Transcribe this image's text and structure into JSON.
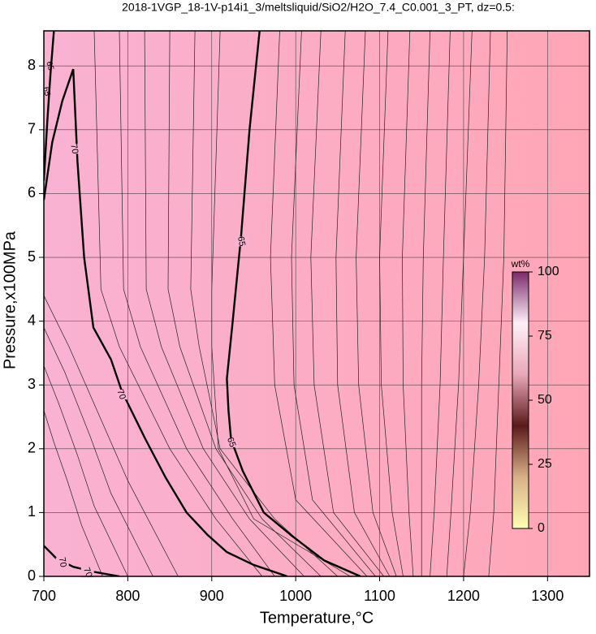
{
  "chart_data": {
    "type": "contour",
    "title": "2018-1VGP_18-1V-p14i1_3/meltsliquid/SiO2/H2O_7.4_C0.001_3_PT, dz=0.5:",
    "x_label": "Temperature,°C",
    "y_label": "Pressure,x100MPa",
    "xlim": [
      700,
      1350
    ],
    "ylim": [
      0,
      8.55
    ],
    "xticks": [
      700,
      800,
      900,
      1000,
      1100,
      1200,
      1300
    ],
    "yticks": [
      0,
      1,
      2,
      3,
      4,
      5,
      6,
      7,
      8
    ],
    "grid": true,
    "field_colors": [
      "#f9b2d2",
      "#ffa6b6"
    ],
    "contours": [
      {
        "level": 70,
        "label_x": [
          736,
          792
        ],
        "label_y": [
          6.7,
          2.85
        ],
        "x": [
          700,
          710,
          722,
          735,
          740,
          748,
          759,
          780,
          793,
          821,
          845,
          870,
          895,
          918,
          950,
          990
        ],
        "y": [
          5.9,
          6.8,
          7.45,
          7.95,
          6.5,
          5.0,
          3.9,
          3.4,
          2.9,
          2.15,
          1.55,
          1.0,
          0.65,
          0.38,
          0.18,
          0
        ]
      },
      {
        "level": 70,
        "label_x": [],
        "label_y": [],
        "x": [
          700,
          704,
          708,
          712
        ],
        "y": [
          6.2,
          7.1,
          7.9,
          8.55
        ]
      },
      {
        "level": 65,
        "label_x": [
          935,
          923
        ],
        "label_y": [
          5.25,
          2.1
        ],
        "x": [
          957,
          945,
          935,
          925,
          918,
          920,
          923,
          937,
          962,
          995,
          1034,
          1077
        ],
        "y": [
          8.55,
          7.0,
          5.35,
          4.0,
          3.1,
          2.6,
          2.15,
          1.65,
          1.0,
          0.64,
          0.25,
          0
        ]
      },
      {
        "level": 70,
        "label_x": [
          722,
          752
        ],
        "label_y": [
          0.22,
          0.06
        ],
        "x": [
          700,
          715,
          735,
          760,
          790
        ],
        "y": [
          0.48,
          0.28,
          0.15,
          0.07,
          0
        ]
      }
    ],
    "contour_labels_top": {
      "level": 65,
      "x": [
        707,
        703
      ],
      "y": [
        8.0,
        7.6
      ]
    },
    "thin_contours": [
      {
        "x": [
          981,
          970,
          975,
          1000,
          1085
        ],
        "y": [
          8.55,
          5.0,
          3.0,
          1.2,
          0
        ]
      },
      {
        "x": [
          1007,
          995,
          998,
          1020,
          1095
        ],
        "y": [
          8.55,
          5.0,
          3.0,
          1.2,
          0
        ]
      },
      {
        "x": [
          1030,
          1018,
          1022,
          1045,
          1105
        ],
        "y": [
          8.55,
          5.0,
          3.0,
          1.0,
          0
        ]
      },
      {
        "x": [
          1059,
          1048,
          1050,
          1070,
          1112
        ],
        "y": [
          8.55,
          5.0,
          3.0,
          1.0,
          0
        ]
      },
      {
        "x": [
          1083,
          1072,
          1075,
          1092,
          1120
        ],
        "y": [
          8.55,
          5.0,
          3.0,
          1.0,
          0
        ]
      },
      {
        "x": [
          1110,
          1100,
          1102,
          1115,
          1128
        ],
        "y": [
          8.55,
          5.0,
          3.0,
          1.0,
          0
        ]
      },
      {
        "x": [
          1136,
          1127,
          1128,
          1135,
          1140
        ],
        "y": [
          8.55,
          5.0,
          3.0,
          1.0,
          0
        ]
      },
      {
        "x": [
          1160,
          1152,
          1150,
          1150,
          1150
        ],
        "y": [
          8.55,
          5.0,
          3.0,
          1.0,
          0
        ]
      },
      {
        "x": [
          1184,
          1176,
          1172,
          1165,
          1160
        ],
        "y": [
          8.55,
          5.0,
          3.0,
          1.0,
          0
        ]
      },
      {
        "x": [
          1210,
          1200,
          1194,
          1185,
          1180
        ],
        "y": [
          8.55,
          5.0,
          3.0,
          1.0,
          0
        ]
      },
      {
        "x": [
          1232,
          1225,
          1218,
          1208,
          1200
        ],
        "y": [
          8.55,
          5.0,
          3.0,
          1.0,
          0
        ]
      },
      {
        "x": [
          1252,
          1248,
          1242,
          1236,
          1230
        ],
        "y": [
          8.55,
          5.0,
          3.0,
          1.0,
          0
        ]
      },
      {
        "x": [
          760,
          768,
          790,
          850,
          905,
          960
        ],
        "y": [
          8.55,
          4.5,
          3.6,
          2.0,
          0.9,
          0
        ]
      },
      {
        "x": [
          790,
          795,
          815,
          870,
          925,
          975
        ],
        "y": [
          8.55,
          4.5,
          3.6,
          2.0,
          0.9,
          0
        ]
      },
      {
        "x": [
          820,
          822,
          840,
          890,
          945,
          1010
        ],
        "y": [
          8.55,
          4.5,
          3.6,
          2.0,
          0.9,
          0
        ]
      },
      {
        "x": [
          850,
          848,
          862,
          905,
          960,
          1030
        ],
        "y": [
          8.55,
          4.5,
          3.6,
          2.0,
          0.9,
          0
        ]
      },
      {
        "x": [
          880,
          875,
          885,
          910,
          975,
          1050
        ],
        "y": [
          8.55,
          4.5,
          3.6,
          2.0,
          0.9,
          0
        ]
      },
      {
        "x": [
          910,
          900,
          900,
          908,
          950,
          1065
        ],
        "y": [
          8.55,
          4.5,
          3.6,
          2.0,
          0.9,
          0
        ]
      },
      {
        "x": [
          700,
          730,
          770,
          800,
          860
        ],
        "y": [
          4.4,
          3.6,
          2.4,
          1.5,
          0
        ]
      },
      {
        "x": [
          700,
          725,
          755,
          780,
          830
        ],
        "y": [
          3.9,
          3.2,
          2.2,
          1.3,
          0
        ]
      },
      {
        "x": [
          700,
          718,
          740,
          760,
          800
        ],
        "y": [
          3.3,
          2.7,
          1.9,
          1.1,
          0
        ]
      },
      {
        "x": [
          700,
          712,
          728,
          745,
          770
        ],
        "y": [
          2.6,
          2.1,
          1.5,
          0.8,
          0
        ]
      }
    ],
    "colorbar": {
      "label": "wt%",
      "lim": [
        0,
        100
      ],
      "ticks": [
        0,
        25,
        50,
        75,
        100
      ],
      "colors": [
        "#ffffb4",
        "#d8b088",
        "#5a1a1a",
        "#e8a8b8",
        "#fff0f8",
        "#7a2a6a"
      ]
    }
  }
}
